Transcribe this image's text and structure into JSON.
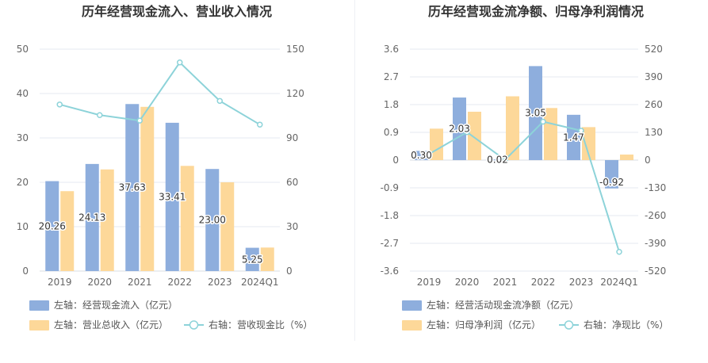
{
  "chart_data": [
    {
      "type": "bar",
      "title": "历年经营现金流入、营业收入情况",
      "categories": [
        "2019",
        "2020",
        "2021",
        "2022",
        "2023",
        "2024Q1"
      ],
      "left_axis": {
        "min": 0,
        "max": 50,
        "ticks": [
          "0",
          "10",
          "20",
          "30",
          "40",
          "50"
        ]
      },
      "right_axis": {
        "min": 0,
        "max": 150,
        "ticks": [
          "0",
          "30",
          "60",
          "90",
          "120",
          "150"
        ]
      },
      "grid": true,
      "legend_position": "bottom",
      "series": [
        {
          "name": "左轴：经营现金流入（亿元）",
          "kind": "bar",
          "axis": "left",
          "color": "#8eaedd",
          "values": [
            20.26,
            24.13,
            37.63,
            33.41,
            23.0,
            5.25
          ],
          "labels": [
            "20.26",
            "24.13",
            "37.63",
            "33.41",
            "23.00",
            "5.25"
          ]
        },
        {
          "name": "左轴：营业总收入（亿元）",
          "kind": "bar",
          "axis": "left",
          "color": "#fdd899",
          "values": [
            18.0,
            22.9,
            37.0,
            23.7,
            20.0,
            5.3
          ]
        },
        {
          "name": "右轴：营收现金比（%）",
          "kind": "line",
          "axis": "right",
          "color": "#8dd3d9",
          "values": [
            112.6,
            105.4,
            101.7,
            141.0,
            115.0,
            99.0
          ]
        }
      ]
    },
    {
      "type": "bar",
      "title": "历年经营现金流净额、归母净利润情况",
      "categories": [
        "2019",
        "2020",
        "2021",
        "2022",
        "2023",
        "2024Q1"
      ],
      "left_axis": {
        "min": -3.6,
        "max": 3.6,
        "ticks": [
          "-3.6",
          "-2.7",
          "-1.8",
          "-0.9",
          "0",
          "0.9",
          "1.8",
          "2.7",
          "3.6"
        ]
      },
      "right_axis": {
        "min": -520,
        "max": 520,
        "ticks": [
          "-520",
          "-390",
          "-260",
          "-130",
          "0",
          "130",
          "260",
          "390",
          "520"
        ]
      },
      "grid": true,
      "legend_position": "bottom",
      "series": [
        {
          "name": "左轴：经营活动现金流净额（亿元）",
          "kind": "bar",
          "axis": "left",
          "color": "#8eaedd",
          "values": [
            0.3,
            2.03,
            0.02,
            3.05,
            1.47,
            -0.92
          ],
          "labels": [
            "0.30",
            "2.03",
            "0.02",
            "3.05",
            "1.47",
            "-0.92"
          ]
        },
        {
          "name": "左轴：归母净利润（亿元）",
          "kind": "bar",
          "axis": "left",
          "color": "#fdd899",
          "values": [
            1.02,
            1.57,
            2.07,
            1.69,
            1.07,
            0.18
          ]
        },
        {
          "name": "右轴：净现比（%）",
          "kind": "line",
          "axis": "right",
          "color": "#8dd3d9",
          "values": [
            28.0,
            131.0,
            1.0,
            180.0,
            138.0,
            -430.0
          ]
        }
      ]
    }
  ]
}
